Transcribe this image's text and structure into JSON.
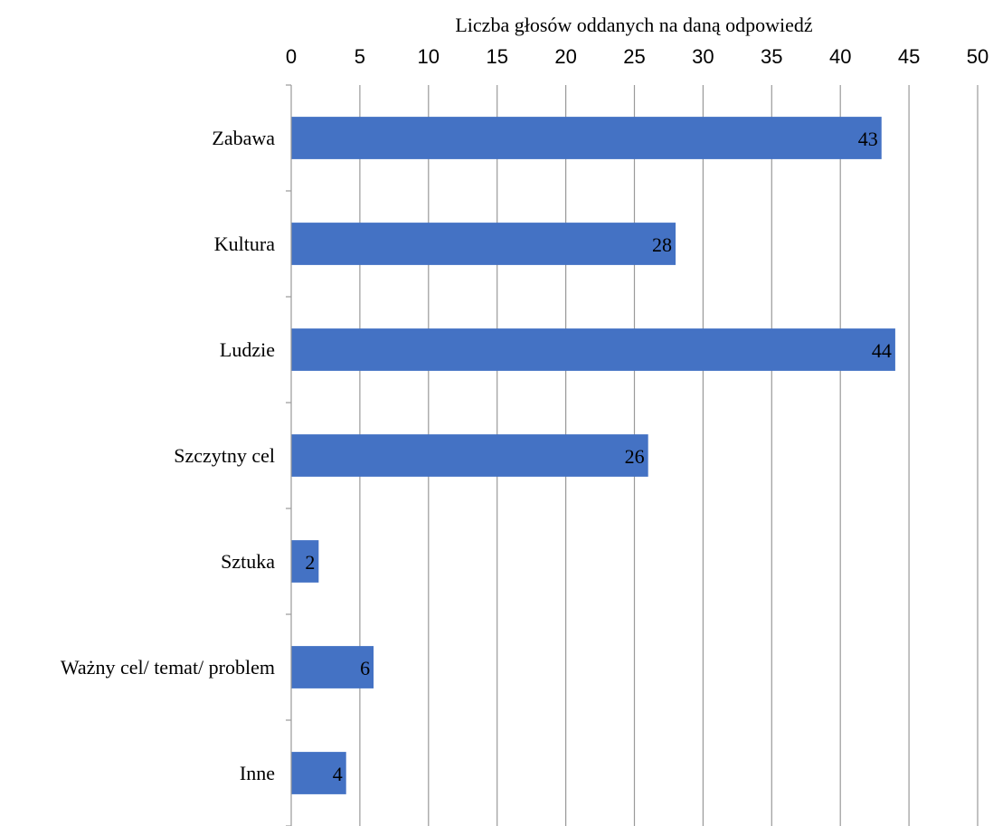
{
  "chart_data": {
    "type": "bar",
    "orientation": "horizontal",
    "xlabel": "Liczba głosów oddanych na daną odpowiedź",
    "ylabel": "",
    "xlim": [
      0,
      50
    ],
    "x_ticks": [
      0,
      5,
      10,
      15,
      20,
      25,
      30,
      35,
      40,
      45,
      50
    ],
    "x_axis_position": "top",
    "grid": "vertical",
    "legend": "none",
    "categories": [
      "Zabawa",
      "Kultura",
      "Ludzie",
      "Szczytny cel",
      "Sztuka",
      "Ważny cel/ temat/ problem",
      "Inne"
    ],
    "values": [
      43,
      28,
      44,
      26,
      2,
      6,
      4
    ],
    "bar_color": "#4472C4",
    "show_data_labels": true
  }
}
